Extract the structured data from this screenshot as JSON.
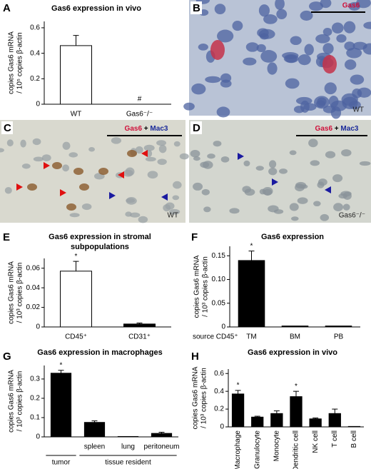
{
  "chart_data": [
    {
      "type": "bar",
      "panel": "A",
      "title": "Gas6 expression in vivo",
      "ylabel": [
        "copies Gas6 mRNA",
        "/ 10⁵ copies β-actin"
      ],
      "categories": [
        "WT",
        "Gas6⁻/⁻"
      ],
      "values": [
        0.46,
        0
      ],
      "errors": [
        0.08,
        0
      ],
      "value_annotations": [
        null,
        "#"
      ],
      "colors": [
        "#ffffff",
        "#000000"
      ],
      "ylim": [
        0,
        0.65
      ],
      "yticks": [
        0,
        0.2,
        0.4,
        0.6
      ]
    },
    {
      "type": "bar",
      "panel": "E",
      "title": [
        "Gas6 expression in stromal",
        "subpopulations"
      ],
      "ylabel": [
        "copies Gas6 mRNA",
        "/ 10³ copies β-actin"
      ],
      "categories": [
        "CD45⁺",
        "CD31⁺"
      ],
      "values": [
        0.057,
        0.003
      ],
      "errors": [
        0.01,
        0.001
      ],
      "value_annotations": [
        "*",
        null
      ],
      "colors": [
        "#ffffff",
        "#000000"
      ],
      "ylim": [
        0,
        0.07
      ],
      "yticks": [
        0,
        0.02,
        0.04,
        0.06
      ]
    },
    {
      "type": "bar",
      "panel": "F",
      "title": "Gas6 expression",
      "ylabel": [
        "copies Gas6 mRNA",
        "/ 10³ copies β-actin"
      ],
      "xlabel": "source CD45⁺",
      "categories": [
        "TM",
        "BM",
        "PB"
      ],
      "values": [
        0.14,
        0.002,
        0.002
      ],
      "errors": [
        0.02,
        0,
        0
      ],
      "value_annotations": [
        "*",
        null,
        null
      ],
      "colors": [
        "#000000",
        "#000000",
        "#000000"
      ],
      "ylim": [
        0,
        0.17
      ],
      "yticks": [
        0,
        0.05,
        {
          "value": 0.1,
          "label": "0.10"
        },
        0.15
      ]
    },
    {
      "type": "bar",
      "panel": "G",
      "title": "Gas6 expression in macrophages",
      "ylabel": [
        "copies Gas6 mRNA",
        "/ 10³ copies β-actin"
      ],
      "categories": [
        "",
        "spleen",
        "lung",
        "peritoneum"
      ],
      "values": [
        0.33,
        0.075,
        0.002,
        0.018
      ],
      "errors": [
        0.015,
        0.008,
        0,
        0.006
      ],
      "value_annotations": [
        "*",
        null,
        null,
        null
      ],
      "colors": [
        "#000000",
        "#000000",
        "#000000",
        "#000000"
      ],
      "groups": [
        {
          "label": "tumor",
          "span": [
            0,
            0
          ]
        },
        {
          "label": "tissue resident",
          "span": [
            1,
            3
          ]
        }
      ],
      "ylim": [
        0,
        0.37
      ],
      "yticks": [
        0,
        0.1,
        0.2,
        0.3
      ]
    },
    {
      "type": "bar",
      "panel": "H",
      "title": "Gas6 expression in vivo",
      "ylabel": [
        "copies Gas6 mRNA",
        "/ 10³ copies β-actin"
      ],
      "categories": [
        "Macrophage",
        "Granulocyte",
        "Monocyte",
        "Dendritic cell",
        "NK cell",
        "T cell",
        "B cell"
      ],
      "values": [
        0.37,
        0.11,
        0.15,
        0.34,
        0.09,
        0.15,
        0.005
      ],
      "errors": [
        0.04,
        0.01,
        0.03,
        0.06,
        0.01,
        0.05,
        0
      ],
      "value_annotations": [
        "*",
        null,
        null,
        "*",
        null,
        null,
        null
      ],
      "colors": [
        "#000000",
        "#000000",
        "#000000",
        "#000000",
        "#000000",
        "#000000",
        "#000000"
      ],
      "ylim": [
        0,
        0.65
      ],
      "yticks": [
        0,
        0.2,
        0.4,
        0.6
      ]
    }
  ],
  "images": [
    {
      "label": "B",
      "stain": [
        "Gas6"
      ],
      "genotype": "WT"
    },
    {
      "label": "C",
      "stain": [
        "Gas6",
        "+",
        "Mac3"
      ],
      "genotype": "WT"
    },
    {
      "label": "D",
      "stain": [
        "Gas6",
        "+",
        "Mac3"
      ],
      "genotype": "Gas6⁻/⁻"
    }
  ]
}
